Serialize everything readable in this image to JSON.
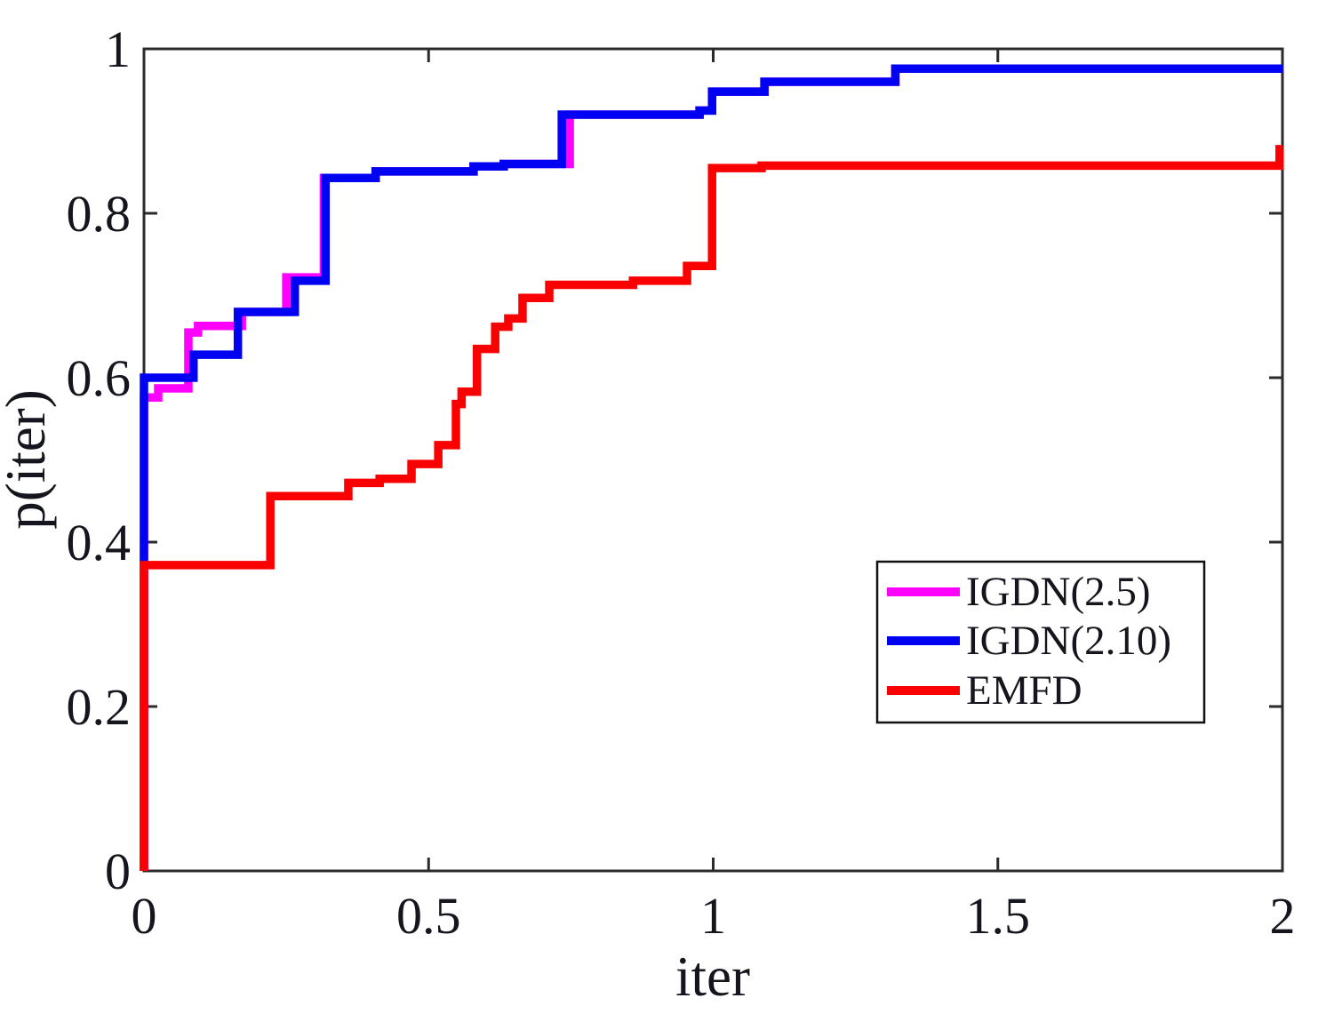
{
  "figure": {
    "background": "#ffffff",
    "axis_color": "#2b2b2b",
    "text_color": "#15151e"
  },
  "chart_data": {
    "type": "line",
    "subtype": "step-function-performance-profile",
    "title": "",
    "xlabel": "iter",
    "ylabel": "p(iter)",
    "xlim": [
      0,
      2
    ],
    "ylim": [
      0,
      1
    ],
    "grid": false,
    "x_tick_values": [
      0,
      0.5,
      1,
      1.5,
      2
    ],
    "x_tick_labels": [
      "0",
      "0.5",
      "1",
      "1.5",
      "2"
    ],
    "y_tick_values": [
      0,
      0.2,
      0.4,
      0.6,
      0.8,
      1
    ],
    "y_tick_labels": [
      "0",
      "0.2",
      "0.4",
      "0.6",
      "0.8",
      "1"
    ],
    "legend": {
      "position": "lower-right",
      "border": true
    },
    "series": [
      {
        "name": "IGDN(2.5)",
        "color": "#ff00ff",
        "points": [
          [
            0,
            0
          ],
          [
            0,
            0.576
          ],
          [
            0.025,
            0.587
          ],
          [
            0.078,
            0.655
          ],
          [
            0.095,
            0.663
          ],
          [
            0.172,
            0.68
          ],
          [
            0.25,
            0.722
          ],
          [
            0.316,
            0.843
          ],
          [
            0.407,
            0.851
          ],
          [
            0.579,
            0.857
          ],
          [
            0.632,
            0.86
          ],
          [
            0.748,
            0.92
          ],
          [
            0.976,
            0.925
          ],
          [
            0.998,
            0.948
          ],
          [
            1.09,
            0.96
          ],
          [
            1.32,
            0.976
          ],
          [
            2,
            0.976
          ]
        ]
      },
      {
        "name": "IGDN(2.10)",
        "color": "#0202f2",
        "points": [
          [
            0,
            0
          ],
          [
            0,
            0.6
          ],
          [
            0.087,
            0.628
          ],
          [
            0.165,
            0.68
          ],
          [
            0.265,
            0.718
          ],
          [
            0.319,
            0.843
          ],
          [
            0.407,
            0.851
          ],
          [
            0.579,
            0.857
          ],
          [
            0.632,
            0.86
          ],
          [
            0.734,
            0.92
          ],
          [
            0.976,
            0.925
          ],
          [
            0.998,
            0.948
          ],
          [
            1.09,
            0.96
          ],
          [
            1.32,
            0.976
          ],
          [
            2,
            0.976
          ]
        ]
      },
      {
        "name": "EMFD",
        "color": "#fa0000",
        "points": [
          [
            0,
            0
          ],
          [
            0,
            0.372
          ],
          [
            0.222,
            0.456
          ],
          [
            0.359,
            0.472
          ],
          [
            0.414,
            0.477
          ],
          [
            0.47,
            0.495
          ],
          [
            0.517,
            0.518
          ],
          [
            0.548,
            0.568
          ],
          [
            0.558,
            0.583
          ],
          [
            0.585,
            0.635
          ],
          [
            0.617,
            0.662
          ],
          [
            0.64,
            0.672
          ],
          [
            0.665,
            0.697
          ],
          [
            0.712,
            0.713
          ],
          [
            0.859,
            0.718
          ],
          [
            0.954,
            0.736
          ],
          [
            0.998,
            0.855
          ],
          [
            1.085,
            0.858
          ],
          [
            1.995,
            0.878
          ],
          [
            2,
            0.878
          ]
        ]
      }
    ]
  }
}
